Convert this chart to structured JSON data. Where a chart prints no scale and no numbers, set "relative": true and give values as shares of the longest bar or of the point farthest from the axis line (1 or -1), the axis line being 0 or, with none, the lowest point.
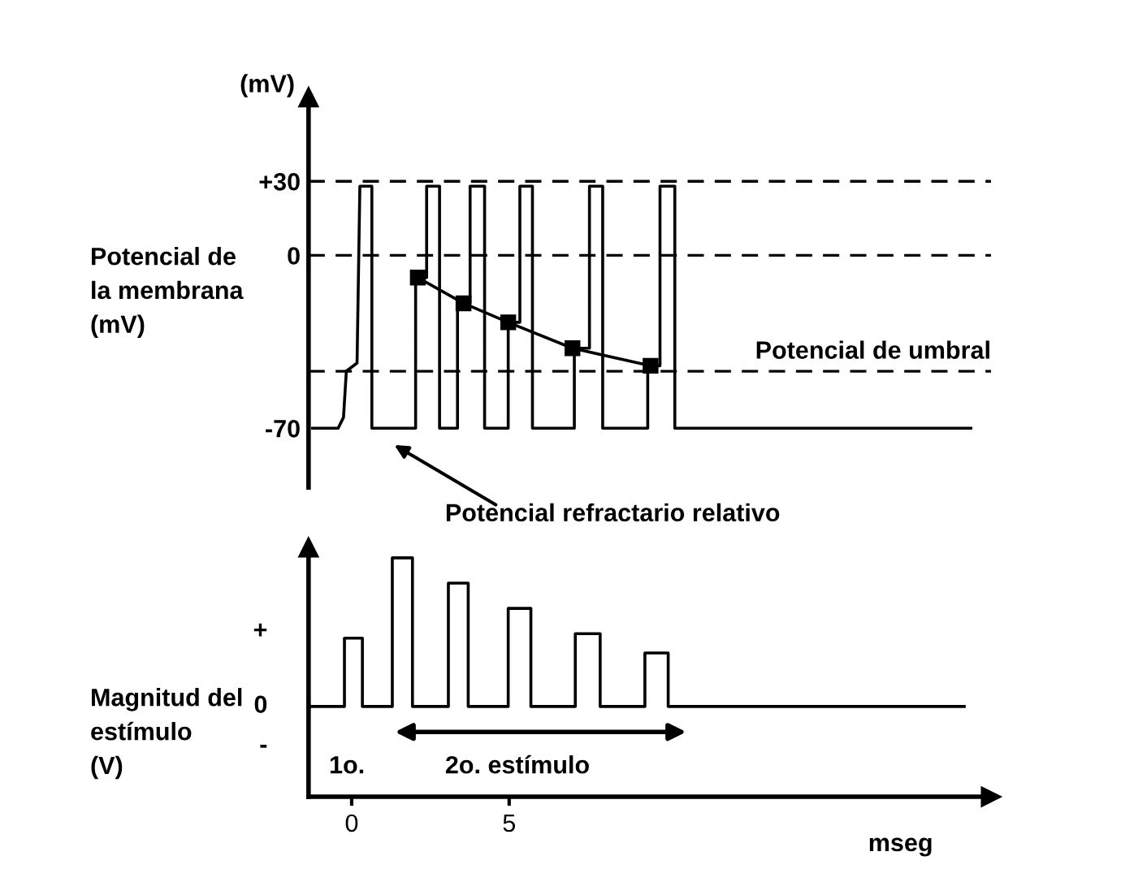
{
  "chart_data": [
    {
      "type": "line",
      "ylabel": "Potencial de\nla membrana\n(mV)",
      "xlim": [
        -1.37,
        20.3
      ],
      "ylim": [
        -94,
        64
      ],
      "yticks": [
        {
          "value": 30,
          "label": "+30"
        },
        0,
        -70
      ],
      "tick_labels": "y",
      "series": [
        {
          "color": "#000000",
          "marker": "none",
          "x": [
            -1.24,
            -0.43,
            -0.26,
            -0.17,
            0.17,
            0.26,
            0.64,
            0.64,
            2.03,
            2.03,
            2.38,
            2.38,
            2.79,
            2.79,
            3.36,
            3.36,
            3.76,
            3.76,
            4.22,
            4.22,
            4.97,
            4.97,
            5.34,
            5.34,
            5.74,
            5.74,
            7.07,
            7.07,
            7.55,
            7.55,
            7.97,
            7.97,
            9.4,
            9.4,
            9.79,
            9.79,
            10.26,
            10.26,
            19.66
          ],
          "values": [
            -70,
            -70,
            -65.6,
            -46.9,
            -43.6,
            28,
            28,
            -70,
            -70,
            -9,
            -9,
            28,
            28,
            -70,
            -70,
            -19.4,
            -19.4,
            28,
            28,
            -70,
            -70,
            -27.1,
            -27.1,
            28,
            28,
            -70,
            -70,
            -37.6,
            -37.6,
            28,
            28,
            -70,
            -70,
            -44.7,
            -44.7,
            28,
            28,
            -70,
            -70
          ]
        },
        {
          "color": "#000000",
          "marker": "square",
          "x": [
            2.1,
            3.55,
            4.97,
            7.01,
            9.49
          ],
          "values": [
            -9,
            -19.4,
            -27.1,
            -37.6,
            -44.7
          ]
        }
      ],
      "ref_lines": [
        {
          "axis": "y",
          "value": 30,
          "line_style": "dashed"
        },
        {
          "axis": "y",
          "value": 0,
          "line_style": "dashed"
        },
        {
          "axis": "y",
          "value": -46.9,
          "line_style": "dashed",
          "label": "Potencial de umbral"
        }
      ],
      "annotations": [
        "(mV)",
        "Potencial refractario relativo"
      ]
    },
    {
      "type": "line",
      "relative": true,
      "ylabel": "Magnitud del\nestímulo\n(V)",
      "xlabel": "mseg",
      "xlim": [
        -1.37,
        20.3
      ],
      "xticks": [
        0,
        5
      ],
      "tick_labels": "x",
      "series": [
        {
          "color": "#000000",
          "marker": "none",
          "x": [
            -1.28,
            -0.23,
            -0.23,
            0.34,
            0.34,
            1.29,
            1.29,
            1.93,
            1.93,
            3.07,
            3.07,
            3.7,
            3.7,
            4.97,
            4.97,
            5.69,
            5.69,
            7.1,
            7.1,
            7.89,
            7.89,
            9.31,
            9.31,
            10.05,
            10.05,
            19.45
          ],
          "values": [
            0,
            0,
            0.46,
            0.46,
            0,
            0,
            1,
            1,
            0,
            0,
            0.83,
            0.83,
            0,
            0,
            0.66,
            0.66,
            0,
            0,
            0.49,
            0.49,
            0,
            0,
            0.36,
            0.36,
            0,
            0
          ]
        }
      ],
      "annotations": [
        "+",
        "0",
        "-",
        "1o.",
        "2o. estímulo"
      ]
    }
  ]
}
